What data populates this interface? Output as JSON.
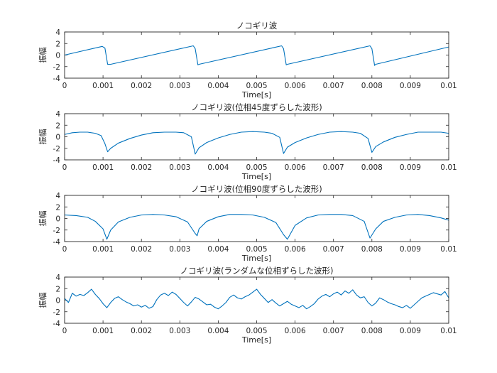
{
  "chart_data": [
    {
      "type": "line",
      "title": "ノコギリ波",
      "xlabel": "Time[s]",
      "ylabel": "振幅",
      "xlim": [
        0,
        0.01
      ],
      "ylim": [
        -4,
        4
      ],
      "xticks": [
        0,
        0.001,
        0.002,
        0.003,
        0.004,
        0.005,
        0.006,
        0.007,
        0.008,
        0.009,
        0.01
      ],
      "yticks": [
        -4,
        -2,
        0,
        2,
        4
      ],
      "series": [
        {
          "color": "#0072BD",
          "x": [
            0,
            0.00098,
            0.00105,
            0.00112,
            0.0012,
            0.00335,
            0.0034,
            0.00347,
            0.0035,
            0.00565,
            0.0057,
            0.00577,
            0.0058,
            0.00795,
            0.008,
            0.00807,
            0.0081,
            0.01
          ],
          "y": [
            0,
            1.5,
            1.2,
            -1.6,
            -1.6,
            1.6,
            1.1,
            -1.7,
            -1.6,
            1.6,
            1.1,
            -1.7,
            -1.6,
            1.6,
            1.1,
            -1.8,
            -1.6,
            1.4
          ]
        }
      ]
    },
    {
      "type": "line",
      "title": "ノコギリ波(位相45度ずらした波形)",
      "xlabel": "Time[s]",
      "ylabel": "振幅",
      "xlim": [
        0,
        0.01
      ],
      "ylim": [
        -4,
        4
      ],
      "xticks": [
        0,
        0.001,
        0.002,
        0.003,
        0.004,
        0.005,
        0.006,
        0.007,
        0.008,
        0.009,
        0.01
      ],
      "yticks": [
        -4,
        -2,
        0,
        2,
        4
      ],
      "series": [
        {
          "color": "#0072BD",
          "x": [
            0,
            0.0002,
            0.0004,
            0.0006,
            0.0008,
            0.00095,
            0.00105,
            0.00112,
            0.0012,
            0.0014,
            0.0017,
            0.002,
            0.0023,
            0.0026,
            0.0029,
            0.0031,
            0.0033,
            0.0034,
            0.0035,
            0.0037,
            0.004,
            0.0043,
            0.0046,
            0.0049,
            0.0052,
            0.0054,
            0.0056,
            0.0057,
            0.0058,
            0.006,
            0.0063,
            0.0066,
            0.0069,
            0.0072,
            0.0075,
            0.0077,
            0.0079,
            0.008,
            0.0081,
            0.0083,
            0.0086,
            0.0089,
            0.0092,
            0.0095,
            0.0098,
            0.01
          ],
          "y": [
            0.4,
            0.7,
            0.8,
            0.8,
            0.6,
            0.2,
            -1.2,
            -2.6,
            -2.0,
            -1.1,
            -0.3,
            0.3,
            0.7,
            0.8,
            0.8,
            0.7,
            0.0,
            -3.0,
            -1.9,
            -1.0,
            -0.2,
            0.4,
            0.8,
            0.9,
            0.8,
            0.6,
            -0.1,
            -2.9,
            -1.8,
            -1.0,
            -0.2,
            0.4,
            0.8,
            0.9,
            0.8,
            0.6,
            -0.3,
            -2.7,
            -1.7,
            -0.9,
            -0.1,
            0.4,
            0.8,
            0.8,
            0.8,
            0.6
          ]
        }
      ]
    },
    {
      "type": "line",
      "title": "ノコギリ波(位相90度ずらした波形)",
      "xlabel": "Time[s]",
      "ylabel": "振幅",
      "xlim": [
        0,
        0.01
      ],
      "ylim": [
        -4,
        4
      ],
      "xticks": [
        0,
        0.001,
        0.002,
        0.003,
        0.004,
        0.005,
        0.006,
        0.007,
        0.008,
        0.009,
        0.01
      ],
      "yticks": [
        -4,
        -2,
        0,
        2,
        4
      ],
      "series": [
        {
          "color": "#0072BD",
          "x": [
            0,
            0.0003,
            0.0006,
            0.0008,
            0.001,
            0.0011,
            0.0012,
            0.0014,
            0.0017,
            0.002,
            0.0023,
            0.0026,
            0.0029,
            0.0032,
            0.0034,
            0.00345,
            0.0035,
            0.0037,
            0.004,
            0.0043,
            0.0046,
            0.0049,
            0.0052,
            0.0055,
            0.0057,
            0.0058,
            0.006,
            0.0063,
            0.0066,
            0.0069,
            0.0072,
            0.0075,
            0.0078,
            0.00795,
            0.0081,
            0.0083,
            0.0086,
            0.0089,
            0.0092,
            0.0095,
            0.0098,
            0.01
          ],
          "y": [
            0.6,
            0.5,
            0.2,
            -0.5,
            -1.8,
            -3.6,
            -2.0,
            -0.6,
            0.2,
            0.6,
            0.7,
            0.6,
            0.3,
            -0.6,
            -2.6,
            -3.0,
            -1.8,
            -0.5,
            0.3,
            0.7,
            0.7,
            0.6,
            0.2,
            -0.7,
            -2.8,
            -3.6,
            -1.2,
            0.1,
            0.6,
            0.7,
            0.7,
            0.5,
            -0.5,
            -3.4,
            -1.8,
            -0.5,
            0.2,
            0.6,
            0.7,
            0.5,
            0.1,
            -0.3
          ]
        }
      ]
    },
    {
      "type": "line",
      "title": "ノコギリ波(ランダムな位相ずらした波形)",
      "xlabel": "Time[s]",
      "ylabel": "振幅",
      "xlim": [
        0,
        0.01
      ],
      "ylim": [
        -4,
        4
      ],
      "xticks": [
        0,
        0.001,
        0.002,
        0.003,
        0.004,
        0.005,
        0.006,
        0.007,
        0.008,
        0.009,
        0.01
      ],
      "yticks": [
        -4,
        -2,
        0,
        2,
        4
      ],
      "series": [
        {
          "color": "#0072BD",
          "x": [
            0,
            0.0001,
            0.0002,
            0.0003,
            0.0004,
            0.0005,
            0.0006,
            0.0007,
            0.0008,
            0.0009,
            0.001,
            0.0011,
            0.0012,
            0.0013,
            0.0014,
            0.0015,
            0.0016,
            0.0017,
            0.0018,
            0.0019,
            0.002,
            0.0021,
            0.0022,
            0.0023,
            0.0024,
            0.0025,
            0.0026,
            0.0027,
            0.0028,
            0.0029,
            0.003,
            0.0031,
            0.0032,
            0.0033,
            0.0034,
            0.0035,
            0.0036,
            0.0037,
            0.0038,
            0.0039,
            0.004,
            0.0041,
            0.0042,
            0.0043,
            0.0044,
            0.0045,
            0.0046,
            0.0047,
            0.0048,
            0.0049,
            0.005,
            0.0051,
            0.0052,
            0.0053,
            0.0054,
            0.0055,
            0.0056,
            0.0057,
            0.0058,
            0.0059,
            0.006,
            0.0061,
            0.0062,
            0.0063,
            0.0064,
            0.0065,
            0.0066,
            0.0067,
            0.0068,
            0.0069,
            0.007,
            0.0071,
            0.0072,
            0.0073,
            0.0074,
            0.0075,
            0.0076,
            0.0077,
            0.0078,
            0.0079,
            0.008,
            0.0081,
            0.0082,
            0.0083,
            0.0084,
            0.0085,
            0.0086,
            0.0087,
            0.0088,
            0.0089,
            0.009,
            0.0091,
            0.0092,
            0.0093,
            0.0094,
            0.0095,
            0.0096,
            0.0097,
            0.0098,
            0.0099,
            0.01
          ],
          "y": [
            0.3,
            -0.4,
            1.2,
            0.7,
            1.0,
            0.8,
            1.3,
            1.9,
            1.0,
            0.3,
            -0.6,
            -1.3,
            -0.4,
            0.3,
            0.6,
            0.1,
            -0.3,
            -0.6,
            -1.0,
            -0.8,
            -1.2,
            -0.9,
            -1.4,
            -1.1,
            0.1,
            0.9,
            1.2,
            0.8,
            1.4,
            1.0,
            0.3,
            -0.4,
            -1.0,
            -0.3,
            0.5,
            0.2,
            -0.3,
            -0.8,
            -0.7,
            -1.2,
            -1.5,
            -1.0,
            -0.4,
            0.5,
            0.9,
            0.4,
            0.2,
            0.6,
            0.9,
            1.4,
            1.9,
            1.0,
            0.3,
            -0.4,
            0.1,
            -0.5,
            -1.0,
            -0.6,
            -0.2,
            -0.7,
            -1.0,
            -1.3,
            -0.9,
            -1.5,
            -1.1,
            -0.6,
            0.2,
            0.7,
            1.0,
            0.6,
            1.1,
            1.4,
            0.9,
            1.6,
            1.2,
            1.8,
            0.9,
            0.4,
            0.6,
            -0.4,
            -1.0,
            -0.5,
            0.4,
            0.1,
            -0.3,
            -0.6,
            -0.8,
            -1.1,
            -1.3,
            -0.9,
            -1.4,
            -0.8,
            -0.2,
            0.4,
            0.7,
            1.0,
            1.3,
            1.1,
            0.9,
            1.5,
            0.4
          ]
        }
      ]
    }
  ]
}
